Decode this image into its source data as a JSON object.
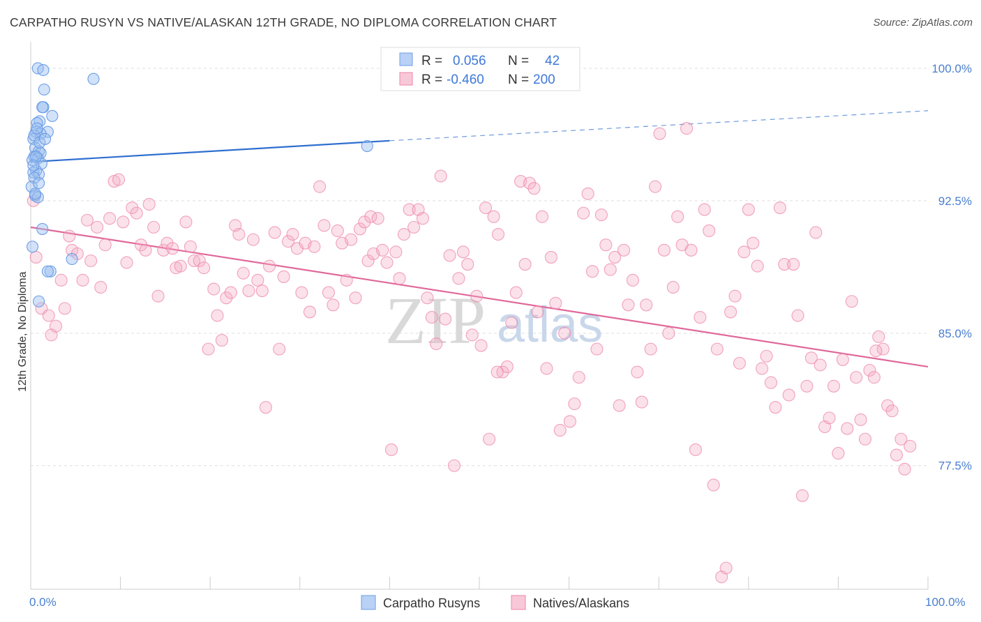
{
  "title": "CARPATHO RUSYN VS NATIVE/ALASKAN 12TH GRADE, NO DIPLOMA CORRELATION CHART",
  "source": "Source: ZipAtlas.com",
  "watermark": {
    "zip": "ZIP",
    "atlas": "atlas"
  },
  "colors": {
    "blue": "#6c9ee6",
    "pink": "#ee86a8",
    "blue_line": "#2f6fcf",
    "pink_line": "#e0689a",
    "tick_text": "#4a7fcf"
  },
  "legend": {
    "rows": [
      {
        "r_label": "R = ",
        "r_value": "0.056",
        "n_label": "N = ",
        "n_value": "42"
      },
      {
        "r_label": "R = ",
        "r_value": "-0.460",
        "n_label": "N = ",
        "n_value": "200"
      }
    ]
  },
  "bottom_legend": [
    "Carpatho Rusyns",
    "Natives/Alaskans"
  ],
  "chart_data": {
    "type": "scatter",
    "title": "CARPATHO RUSYN VS NATIVE/ALASKAN 12TH GRADE, NO DIPLOMA CORRELATION CHART",
    "xlabel": "",
    "ylabel": "12th Grade, No Diploma",
    "xlim": [
      0,
      100
    ],
    "ylim": [
      70.5,
      101.5
    ],
    "x_tick_labels": [
      "0.0%",
      "100.0%"
    ],
    "y_ticks": [
      77.5,
      85.0,
      92.5,
      100.0
    ],
    "y_tick_labels": [
      "77.5%",
      "85.0%",
      "92.5%",
      "100.0%"
    ],
    "legend_position": "top-center",
    "series": [
      {
        "name": "Carpatho Rusyns",
        "trend": {
          "x_start": 0,
          "y_start": 94.7,
          "x_solid_end": 40,
          "y_solid_end": 95.9,
          "x_end": 100,
          "y_end": 97.6
        },
        "points": [
          [
            0.8,
            100.0
          ],
          [
            1.4,
            99.9
          ],
          [
            7.0,
            99.4
          ],
          [
            1.5,
            98.8
          ],
          [
            1.4,
            97.8
          ],
          [
            1.3,
            97.8
          ],
          [
            2.4,
            97.3
          ],
          [
            1.0,
            97.0
          ],
          [
            0.7,
            96.9
          ],
          [
            1.9,
            96.4
          ],
          [
            0.6,
            96.4
          ],
          [
            1.1,
            96.3
          ],
          [
            0.3,
            96.0
          ],
          [
            0.5,
            95.5
          ],
          [
            0.9,
            95.3
          ],
          [
            1.1,
            95.2
          ],
          [
            0.4,
            95.0
          ],
          [
            0.8,
            94.9
          ],
          [
            0.2,
            94.8
          ],
          [
            1.2,
            94.6
          ],
          [
            0.6,
            94.2
          ],
          [
            0.3,
            94.1
          ],
          [
            0.9,
            94.0
          ],
          [
            0.4,
            93.8
          ],
          [
            0.1,
            93.3
          ],
          [
            0.5,
            92.8
          ],
          [
            0.8,
            92.7
          ],
          [
            1.3,
            90.9
          ],
          [
            0.2,
            89.9
          ],
          [
            4.6,
            89.2
          ],
          [
            2.2,
            88.5
          ],
          [
            1.9,
            88.5
          ],
          [
            0.9,
            86.8
          ],
          [
            37.5,
            95.6
          ],
          [
            0.6,
            95.0
          ],
          [
            0.4,
            96.2
          ],
          [
            0.9,
            93.5
          ],
          [
            0.3,
            94.5
          ],
          [
            0.7,
            96.6
          ],
          [
            1.0,
            95.8
          ],
          [
            0.5,
            92.9
          ],
          [
            1.6,
            96.0
          ]
        ]
      },
      {
        "name": "Natives/Alaskans",
        "trend": {
          "x_start": 0,
          "y_start": 91.0,
          "x_end": 100,
          "y_end": 83.1
        },
        "points": [
          [
            0.3,
            92.5
          ],
          [
            0.6,
            89.3
          ],
          [
            1.2,
            86.4
          ],
          [
            2.0,
            86.0
          ],
          [
            2.3,
            84.9
          ],
          [
            2.8,
            85.4
          ],
          [
            3.4,
            88.0
          ],
          [
            3.8,
            86.4
          ],
          [
            4.3,
            90.5
          ],
          [
            4.6,
            89.7
          ],
          [
            5.2,
            89.5
          ],
          [
            5.8,
            88.0
          ],
          [
            6.3,
            91.4
          ],
          [
            6.7,
            89.1
          ],
          [
            7.4,
            91.0
          ],
          [
            7.8,
            87.6
          ],
          [
            8.3,
            90.0
          ],
          [
            8.8,
            91.5
          ],
          [
            9.3,
            93.6
          ],
          [
            9.8,
            93.7
          ],
          [
            10.3,
            91.3
          ],
          [
            10.7,
            89.0
          ],
          [
            11.3,
            92.1
          ],
          [
            11.8,
            91.8
          ],
          [
            12.3,
            90.0
          ],
          [
            12.8,
            89.7
          ],
          [
            13.2,
            92.3
          ],
          [
            13.7,
            91.0
          ],
          [
            14.2,
            87.1
          ],
          [
            14.8,
            89.7
          ],
          [
            15.2,
            90.1
          ],
          [
            15.8,
            89.8
          ],
          [
            16.2,
            88.7
          ],
          [
            16.7,
            88.8
          ],
          [
            17.3,
            91.3
          ],
          [
            17.8,
            89.9
          ],
          [
            18.2,
            89.1
          ],
          [
            18.8,
            89.1
          ],
          [
            19.3,
            88.7
          ],
          [
            19.8,
            84.1
          ],
          [
            20.4,
            87.5
          ],
          [
            20.8,
            86.0
          ],
          [
            21.3,
            84.6
          ],
          [
            21.8,
            87.0
          ],
          [
            22.3,
            87.3
          ],
          [
            22.8,
            91.1
          ],
          [
            23.2,
            90.6
          ],
          [
            23.7,
            88.4
          ],
          [
            24.3,
            87.4
          ],
          [
            24.8,
            90.3
          ],
          [
            25.3,
            88.0
          ],
          [
            25.8,
            87.4
          ],
          [
            26.2,
            80.8
          ],
          [
            26.6,
            88.8
          ],
          [
            27.2,
            90.7
          ],
          [
            27.7,
            84.1
          ],
          [
            28.2,
            88.2
          ],
          [
            28.7,
            90.2
          ],
          [
            29.2,
            90.6
          ],
          [
            29.7,
            89.8
          ],
          [
            30.2,
            87.3
          ],
          [
            30.6,
            90.1
          ],
          [
            31.1,
            86.2
          ],
          [
            31.6,
            89.9
          ],
          [
            32.2,
            93.3
          ],
          [
            32.7,
            91.1
          ],
          [
            33.2,
            87.3
          ],
          [
            33.7,
            86.6
          ],
          [
            34.2,
            90.8
          ],
          [
            34.7,
            90.1
          ],
          [
            35.2,
            88.0
          ],
          [
            35.7,
            90.3
          ],
          [
            36.2,
            87.0
          ],
          [
            36.7,
            90.9
          ],
          [
            37.2,
            91.3
          ],
          [
            37.6,
            89.1
          ],
          [
            37.9,
            91.6
          ],
          [
            38.2,
            89.5
          ],
          [
            38.7,
            91.5
          ],
          [
            39.2,
            89.7
          ],
          [
            39.7,
            89.0
          ],
          [
            40.2,
            78.4
          ],
          [
            40.7,
            89.6
          ],
          [
            41.1,
            88.1
          ],
          [
            41.6,
            90.6
          ],
          [
            42.2,
            92.0
          ],
          [
            42.7,
            91.0
          ],
          [
            43.2,
            92.0
          ],
          [
            43.7,
            91.5
          ],
          [
            44.2,
            87.0
          ],
          [
            44.7,
            85.9
          ],
          [
            45.2,
            84.4
          ],
          [
            45.7,
            93.9
          ],
          [
            46.2,
            85.8
          ],
          [
            46.7,
            89.4
          ],
          [
            47.2,
            77.5
          ],
          [
            47.7,
            88.1
          ],
          [
            48.2,
            89.6
          ],
          [
            48.7,
            88.9
          ],
          [
            49.2,
            84.9
          ],
          [
            49.7,
            87.1
          ],
          [
            50.2,
            84.3
          ],
          [
            50.7,
            92.1
          ],
          [
            51.1,
            79.0
          ],
          [
            51.6,
            91.6
          ],
          [
            52.1,
            90.6
          ],
          [
            52.6,
            82.8
          ],
          [
            53.1,
            83.1
          ],
          [
            53.6,
            85.6
          ],
          [
            54.1,
            87.3
          ],
          [
            54.6,
            93.6
          ],
          [
            55.1,
            88.9
          ],
          [
            55.6,
            93.5
          ],
          [
            56.1,
            93.2
          ],
          [
            56.5,
            86.2
          ],
          [
            57.0,
            91.6
          ],
          [
            57.5,
            83.0
          ],
          [
            58.0,
            89.3
          ],
          [
            58.5,
            86.7
          ],
          [
            59.0,
            79.5
          ],
          [
            59.5,
            85.0
          ],
          [
            60.1,
            80.0
          ],
          [
            60.6,
            81.0
          ],
          [
            61.1,
            82.5
          ],
          [
            61.6,
            91.8
          ],
          [
            62.1,
            92.9
          ],
          [
            62.6,
            88.5
          ],
          [
            63.1,
            84.1
          ],
          [
            63.6,
            91.7
          ],
          [
            64.1,
            90.0
          ],
          [
            64.6,
            88.6
          ],
          [
            65.1,
            89.3
          ],
          [
            65.6,
            80.9
          ],
          [
            66.1,
            89.7
          ],
          [
            66.6,
            86.6
          ],
          [
            67.1,
            88.0
          ],
          [
            67.6,
            82.8
          ],
          [
            68.1,
            81.1
          ],
          [
            68.6,
            86.6
          ],
          [
            69.1,
            84.1
          ],
          [
            69.6,
            93.3
          ],
          [
            70.1,
            96.3
          ],
          [
            70.6,
            89.7
          ],
          [
            71.1,
            85.0
          ],
          [
            71.6,
            87.6
          ],
          [
            72.1,
            91.6
          ],
          [
            72.6,
            90.0
          ],
          [
            73.1,
            96.6
          ],
          [
            73.6,
            89.7
          ],
          [
            74.1,
            78.4
          ],
          [
            74.6,
            85.9
          ],
          [
            75.1,
            92.0
          ],
          [
            75.6,
            90.8
          ],
          [
            76.1,
            76.4
          ],
          [
            76.5,
            84.1
          ],
          [
            77.0,
            71.2
          ],
          [
            77.5,
            71.7
          ],
          [
            78.0,
            86.2
          ],
          [
            78.5,
            87.1
          ],
          [
            79.0,
            83.3
          ],
          [
            79.5,
            89.6
          ],
          [
            80.0,
            92.0
          ],
          [
            80.5,
            90.1
          ],
          [
            81.0,
            88.8
          ],
          [
            81.5,
            83.0
          ],
          [
            82.0,
            83.7
          ],
          [
            82.5,
            82.2
          ],
          [
            83.0,
            80.8
          ],
          [
            83.5,
            92.1
          ],
          [
            84.0,
            88.9
          ],
          [
            84.5,
            81.5
          ],
          [
            85.0,
            88.9
          ],
          [
            85.5,
            86.0
          ],
          [
            86.0,
            75.8
          ],
          [
            86.5,
            82.0
          ],
          [
            87.0,
            83.6
          ],
          [
            87.5,
            90.7
          ],
          [
            88.0,
            83.2
          ],
          [
            88.5,
            79.7
          ],
          [
            89.0,
            80.2
          ],
          [
            89.5,
            82.0
          ],
          [
            90.0,
            78.2
          ],
          [
            90.5,
            83.5
          ],
          [
            91.0,
            79.6
          ],
          [
            91.5,
            86.8
          ],
          [
            92.0,
            82.5
          ],
          [
            92.5,
            80.1
          ],
          [
            93.0,
            79.0
          ],
          [
            93.5,
            82.9
          ],
          [
            94.0,
            82.5
          ],
          [
            94.5,
            84.8
          ],
          [
            95.0,
            84.1
          ],
          [
            95.5,
            80.9
          ],
          [
            96.0,
            80.6
          ],
          [
            96.5,
            78.1
          ],
          [
            97.0,
            79.0
          ],
          [
            97.4,
            77.3
          ],
          [
            98.0,
            78.6
          ],
          [
            94.2,
            84.0
          ],
          [
            52.0,
            82.8
          ]
        ]
      }
    ]
  }
}
